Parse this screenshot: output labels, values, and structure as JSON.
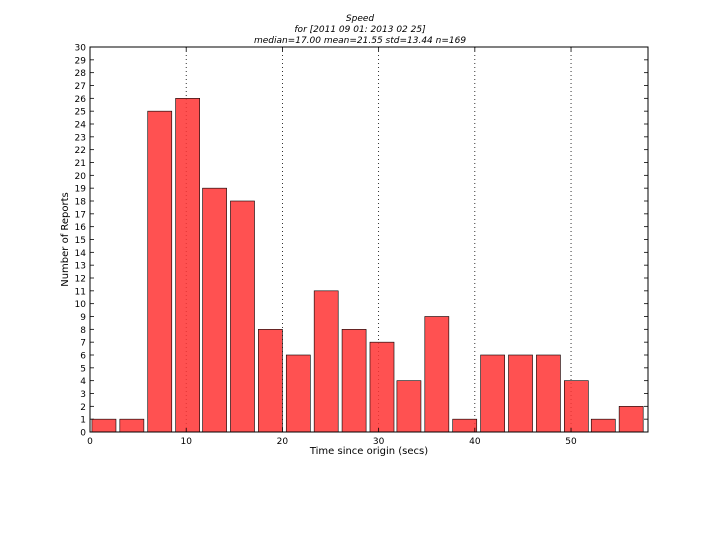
{
  "chart_data": {
    "type": "bar",
    "title": "Speed",
    "subtitle": "for [2011 09 01: 2013 02 25]",
    "stats_line": "median=17.00 mean=21.55 std=13.44 n=169",
    "xlabel": "Time since origin (secs)",
    "ylabel": "Number of Reports",
    "xlim": [
      0,
      58
    ],
    "ylim": [
      0,
      30
    ],
    "xticks": [
      0,
      10,
      20,
      30,
      40,
      50
    ],
    "yticks": [
      0,
      1,
      2,
      3,
      4,
      5,
      6,
      7,
      8,
      9,
      10,
      11,
      12,
      13,
      14,
      15,
      16,
      17,
      18,
      19,
      20,
      21,
      22,
      23,
      24,
      25,
      26,
      27,
      28,
      29,
      30
    ],
    "grid": true,
    "bar_color": "#ff3333",
    "bar_width": 2.5,
    "x": [
      0.2,
      3.1,
      6.0,
      8.9,
      11.7,
      14.6,
      17.5,
      20.4,
      23.3,
      26.2,
      29.1,
      31.9,
      34.8,
      37.7,
      40.6,
      43.5,
      46.4,
      49.3,
      52.1,
      55.0
    ],
    "values": [
      1,
      1,
      25,
      26,
      19,
      18,
      8,
      6,
      11,
      8,
      7,
      4,
      9,
      1,
      6,
      6,
      6,
      4,
      1,
      2
    ]
  }
}
